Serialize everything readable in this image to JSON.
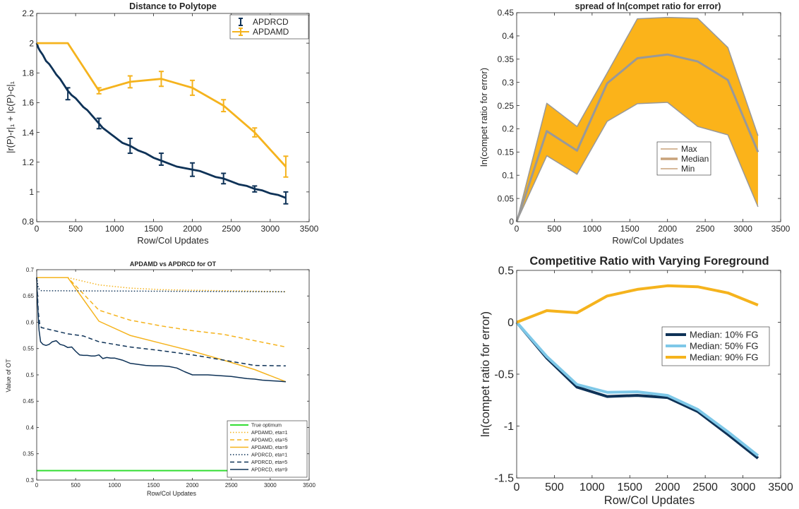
{
  "chart_data": [
    {
      "type": "line",
      "title": "Distance to Polytope",
      "xlabel": "Row/Col Updates",
      "ylabel": "|r(P)-r|₁ + |c(P)-c|₁",
      "xlim": [
        0,
        3500
      ],
      "ylim": [
        0.8,
        2.2
      ],
      "xticks": [
        0,
        500,
        1000,
        1500,
        2000,
        2500,
        3000,
        3500
      ],
      "yticks": [
        0.8,
        1,
        1.2,
        1.4,
        1.6,
        1.8,
        2,
        2.2
      ],
      "xtick_labels": [
        "0",
        "500",
        "1000",
        "1500",
        "2000",
        "2500",
        "3000",
        "3500"
      ],
      "ytick_labels": [
        "0.8",
        "1",
        "1.2",
        "1.4",
        "1.6",
        "1.8",
        "2",
        "2.2"
      ],
      "legend_position": "top-right",
      "series": [
        {
          "name": "APDRCD",
          "color": "#0e3257",
          "x": [
            0,
            20,
            40,
            80,
            120,
            160,
            200,
            250,
            300,
            350,
            400,
            450,
            500,
            550,
            600,
            650,
            700,
            750,
            800,
            850,
            900,
            950,
            1000,
            1050,
            1100,
            1150,
            1200,
            1300,
            1400,
            1500,
            1600,
            1700,
            1800,
            1900,
            2000,
            2100,
            2200,
            2300,
            2400,
            2500,
            2600,
            2700,
            2800,
            2900,
            3000,
            3100,
            3200
          ],
          "y": [
            2.0,
            1.97,
            1.95,
            1.92,
            1.88,
            1.86,
            1.83,
            1.79,
            1.76,
            1.72,
            1.68,
            1.65,
            1.63,
            1.6,
            1.57,
            1.55,
            1.52,
            1.49,
            1.46,
            1.43,
            1.41,
            1.39,
            1.37,
            1.35,
            1.33,
            1.32,
            1.31,
            1.28,
            1.26,
            1.23,
            1.21,
            1.19,
            1.17,
            1.16,
            1.15,
            1.14,
            1.12,
            1.1,
            1.09,
            1.07,
            1.05,
            1.04,
            1.02,
            1.01,
            0.99,
            0.98,
            0.96
          ],
          "error_x": [
            400,
            800,
            1200,
            1600,
            2000,
            2400,
            2800,
            3200
          ],
          "error_y": [
            1.66,
            1.46,
            1.31,
            1.22,
            1.15,
            1.09,
            1.02,
            0.96
          ],
          "error_size": [
            0.04,
            0.035,
            0.05,
            0.04,
            0.045,
            0.035,
            0.02,
            0.04
          ]
        },
        {
          "name": "APDAMD",
          "color": "#f5b31d",
          "x": [
            0,
            400,
            800,
            1200,
            1600,
            2000,
            2400,
            2800,
            3200
          ],
          "y": [
            2.0,
            2.0,
            1.68,
            1.74,
            1.76,
            1.7,
            1.58,
            1.4,
            1.17
          ],
          "error_x": [
            800,
            1200,
            1600,
            2000,
            2400,
            2800,
            3200
          ],
          "error_y": [
            1.68,
            1.74,
            1.76,
            1.7,
            1.58,
            1.4,
            1.17
          ],
          "error_size": [
            0.02,
            0.04,
            0.05,
            0.05,
            0.04,
            0.03,
            0.07
          ]
        }
      ]
    },
    {
      "type": "area",
      "title": "spread of ln(compet ratio for error)",
      "xlabel": "Row/Col Updates",
      "ylabel": "ln(compet ratio for error)",
      "xlim": [
        0,
        3500
      ],
      "ylim": [
        0,
        0.45
      ],
      "xticks": [
        0,
        500,
        1000,
        1500,
        2000,
        2500,
        3000,
        3500
      ],
      "yticks": [
        0,
        0.05,
        0.1,
        0.15,
        0.2,
        0.25,
        0.3,
        0.35,
        0.4,
        0.45
      ],
      "xtick_labels": [
        "0",
        "500",
        "1000",
        "1500",
        "2000",
        "2500",
        "3000",
        "3500"
      ],
      "ytick_labels": [
        "0",
        "0.05",
        "0.1",
        "0.15",
        "0.2",
        "0.25",
        "0.3",
        "0.35",
        "0.4",
        "0.45"
      ],
      "legend_position": "center-right",
      "fill_color": "#fbb31a",
      "x": [
        0,
        400,
        800,
        1200,
        1600,
        2000,
        2400,
        2800,
        3200
      ],
      "series": [
        {
          "name": "Max",
          "color": "#999999",
          "width": 1.5,
          "values": [
            0,
            0.255,
            0.205,
            0.32,
            0.437,
            0.44,
            0.438,
            0.375,
            0.185
          ]
        },
        {
          "name": "Median",
          "color": "#999999",
          "width": 3,
          "values": [
            0,
            0.195,
            0.153,
            0.298,
            0.352,
            0.36,
            0.345,
            0.305,
            0.15
          ]
        },
        {
          "name": "Min",
          "color": "#999999",
          "width": 1.5,
          "values": [
            0,
            0.142,
            0.102,
            0.216,
            0.254,
            0.257,
            0.205,
            0.187,
            0.032
          ]
        }
      ],
      "legend_line_color": "#c8a27a"
    },
    {
      "type": "line",
      "title": "APDAMD vs APDRCD for OT",
      "xlabel": "Row/Col Updates",
      "ylabel": "Value of OT",
      "xlim": [
        0,
        3500
      ],
      "ylim": [
        0.3,
        0.7
      ],
      "xticks": [
        0,
        500,
        1000,
        1500,
        2000,
        2500,
        3000,
        3500
      ],
      "yticks": [
        0.3,
        0.35,
        0.4,
        0.45,
        0.5,
        0.55,
        0.6,
        0.65,
        0.7
      ],
      "xtick_labels": [
        "0",
        "500",
        "1000",
        "1500",
        "2000",
        "2500",
        "3000",
        "3500"
      ],
      "ytick_labels": [
        "0.3",
        "0.35",
        "0.4",
        "0.45",
        "0.5",
        "0.55",
        "0.6",
        "0.65",
        "0.7"
      ],
      "legend_position": "bottom-right",
      "series": [
        {
          "name": "True optimum",
          "color": "#33dd33",
          "dash": "solid",
          "width": 2,
          "x": [
            0,
            3200
          ],
          "y": [
            0.318,
            0.318
          ]
        },
        {
          "name": "APDAMD, eta=1",
          "color": "#f5b31d",
          "dash": "dot",
          "width": 1.5,
          "x": [
            0,
            400,
            600,
            800,
            1200,
            1600,
            2000,
            2400,
            2800,
            3200
          ],
          "y": [
            0.685,
            0.685,
            0.678,
            0.671,
            0.665,
            0.662,
            0.661,
            0.66,
            0.659,
            0.658
          ]
        },
        {
          "name": "APDAMD, eta=5",
          "color": "#f5b31d",
          "dash": "dash",
          "width": 1.5,
          "x": [
            0,
            400,
            800,
            1200,
            1600,
            2000,
            2400,
            2800,
            3200
          ],
          "y": [
            0.685,
            0.685,
            0.623,
            0.604,
            0.593,
            0.584,
            0.577,
            0.565,
            0.553
          ]
        },
        {
          "name": "APDAMD, eta=9",
          "color": "#f5b31d",
          "dash": "solid",
          "width": 1.5,
          "x": [
            0,
            400,
            800,
            1200,
            1600,
            2000,
            2400,
            2800,
            3200
          ],
          "y": [
            0.685,
            0.685,
            0.602,
            0.575,
            0.56,
            0.545,
            0.528,
            0.51,
            0.487
          ]
        },
        {
          "name": "APDRCD, eta=1",
          "color": "#0e3257",
          "dash": "dot",
          "width": 1.5,
          "x": [
            0,
            20,
            40,
            60,
            100,
            3200
          ],
          "y": [
            0.685,
            0.665,
            0.662,
            0.66,
            0.66,
            0.658
          ]
        },
        {
          "name": "APDRCD, eta=5",
          "color": "#0e3257",
          "dash": "dash",
          "width": 1.5,
          "x": [
            0,
            20,
            40,
            60,
            200,
            400,
            600,
            800,
            1200,
            1600,
            2000,
            2400,
            2800,
            3200
          ],
          "y": [
            0.685,
            0.62,
            0.595,
            0.59,
            0.585,
            0.578,
            0.574,
            0.563,
            0.553,
            0.546,
            0.538,
            0.528,
            0.518,
            0.517
          ]
        },
        {
          "name": "APDRCD, eta=9",
          "color": "#0e3257",
          "dash": "solid",
          "width": 1.5,
          "x": [
            0,
            10,
            20,
            30,
            50,
            80,
            120,
            160,
            200,
            250,
            300,
            350,
            400,
            450,
            500,
            550,
            600,
            650,
            700,
            750,
            800,
            850,
            900,
            950,
            1000,
            1100,
            1200,
            1300,
            1400,
            1500,
            1600,
            1700,
            1800,
            1900,
            2000,
            2100,
            2200,
            2300,
            2400,
            2500,
            2600,
            2700,
            2800,
            2900,
            3000,
            3100,
            3200
          ],
          "y": [
            0.685,
            0.64,
            0.61,
            0.585,
            0.563,
            0.558,
            0.556,
            0.558,
            0.563,
            0.565,
            0.558,
            0.556,
            0.552,
            0.553,
            0.545,
            0.538,
            0.537,
            0.537,
            0.536,
            0.536,
            0.538,
            0.531,
            0.533,
            0.532,
            0.532,
            0.528,
            0.522,
            0.52,
            0.518,
            0.517,
            0.517,
            0.516,
            0.513,
            0.506,
            0.5,
            0.5,
            0.5,
            0.499,
            0.498,
            0.497,
            0.495,
            0.493,
            0.492,
            0.49,
            0.489,
            0.488,
            0.487
          ]
        }
      ]
    },
    {
      "type": "line",
      "title": "Competitive Ratio with Varying Foreground",
      "xlabel": "Row/Col Updates",
      "ylabel": "ln(compet ratio for error)",
      "xlim": [
        0,
        3500
      ],
      "ylim": [
        -1.5,
        0.5
      ],
      "xticks": [
        0,
        500,
        1000,
        1500,
        2000,
        2500,
        3000,
        3500
      ],
      "yticks": [
        -1.5,
        -1,
        -0.5,
        0,
        0.5
      ],
      "xtick_labels": [
        "0",
        "500",
        "1000",
        "1500",
        "2000",
        "2500",
        "3000",
        "3500"
      ],
      "ytick_labels": [
        "-1.5",
        "-1",
        "-0.5",
        "0",
        "0.5"
      ],
      "legend_position": "center-right",
      "x": [
        0,
        400,
        800,
        1200,
        1600,
        2000,
        2400,
        2800,
        3200
      ],
      "series": [
        {
          "name": "Median: 10% FG",
          "color": "#0e3257",
          "width": 4,
          "values": [
            0,
            -0.345,
            -0.625,
            -0.715,
            -0.705,
            -0.725,
            -0.86,
            -1.08,
            -1.31
          ]
        },
        {
          "name": "Median: 50% FG",
          "color": "#7ec8e8",
          "width": 4,
          "values": [
            0,
            -0.33,
            -0.6,
            -0.675,
            -0.67,
            -0.705,
            -0.84,
            -1.055,
            -1.285
          ]
        },
        {
          "name": "Median: 90% FG",
          "color": "#f5b31d",
          "width": 4,
          "values": [
            0,
            0.112,
            0.092,
            0.253,
            0.317,
            0.352,
            0.342,
            0.283,
            0.166
          ]
        }
      ]
    }
  ]
}
